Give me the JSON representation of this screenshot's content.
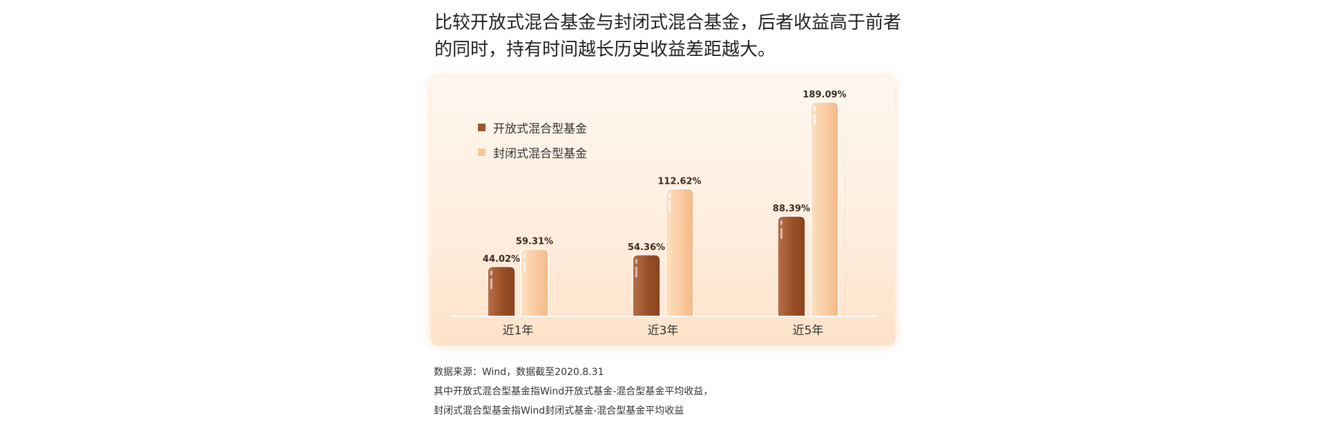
{
  "headline": {
    "line1": "比较开放式混合基金与封闭式混合基金，后者收益高于前者",
    "line2": "的同时，持有时间越长历史收益差距越大。"
  },
  "chart_data": {
    "type": "bar",
    "categories": [
      "近1年",
      "近3年",
      "近5年"
    ],
    "series": [
      {
        "name": "开放式混合型基金",
        "values": [
          44.02,
          54.36,
          88.39
        ],
        "labels": [
          "44.02%",
          "54.36%",
          "88.39%"
        ],
        "color": "#a0532a"
      },
      {
        "name": "封闭式混合型基金",
        "values": [
          59.31,
          112.62,
          189.09
        ],
        "labels": [
          "59.31%",
          "112.62%",
          "189.09%"
        ],
        "color": "#f8c89a"
      }
    ],
    "ylim": [
      0,
      200
    ],
    "grid": false,
    "legend_position": "top-left"
  },
  "footnotes": {
    "source": "数据来源：Wind，数据截至2020.8.31",
    "note1": "其中开放式混合型基金指Wind开放式基金-混合型基金平均收益，",
    "note2": "封闭式混合型基金指Wind封闭式基金-混合型基金平均收益"
  }
}
